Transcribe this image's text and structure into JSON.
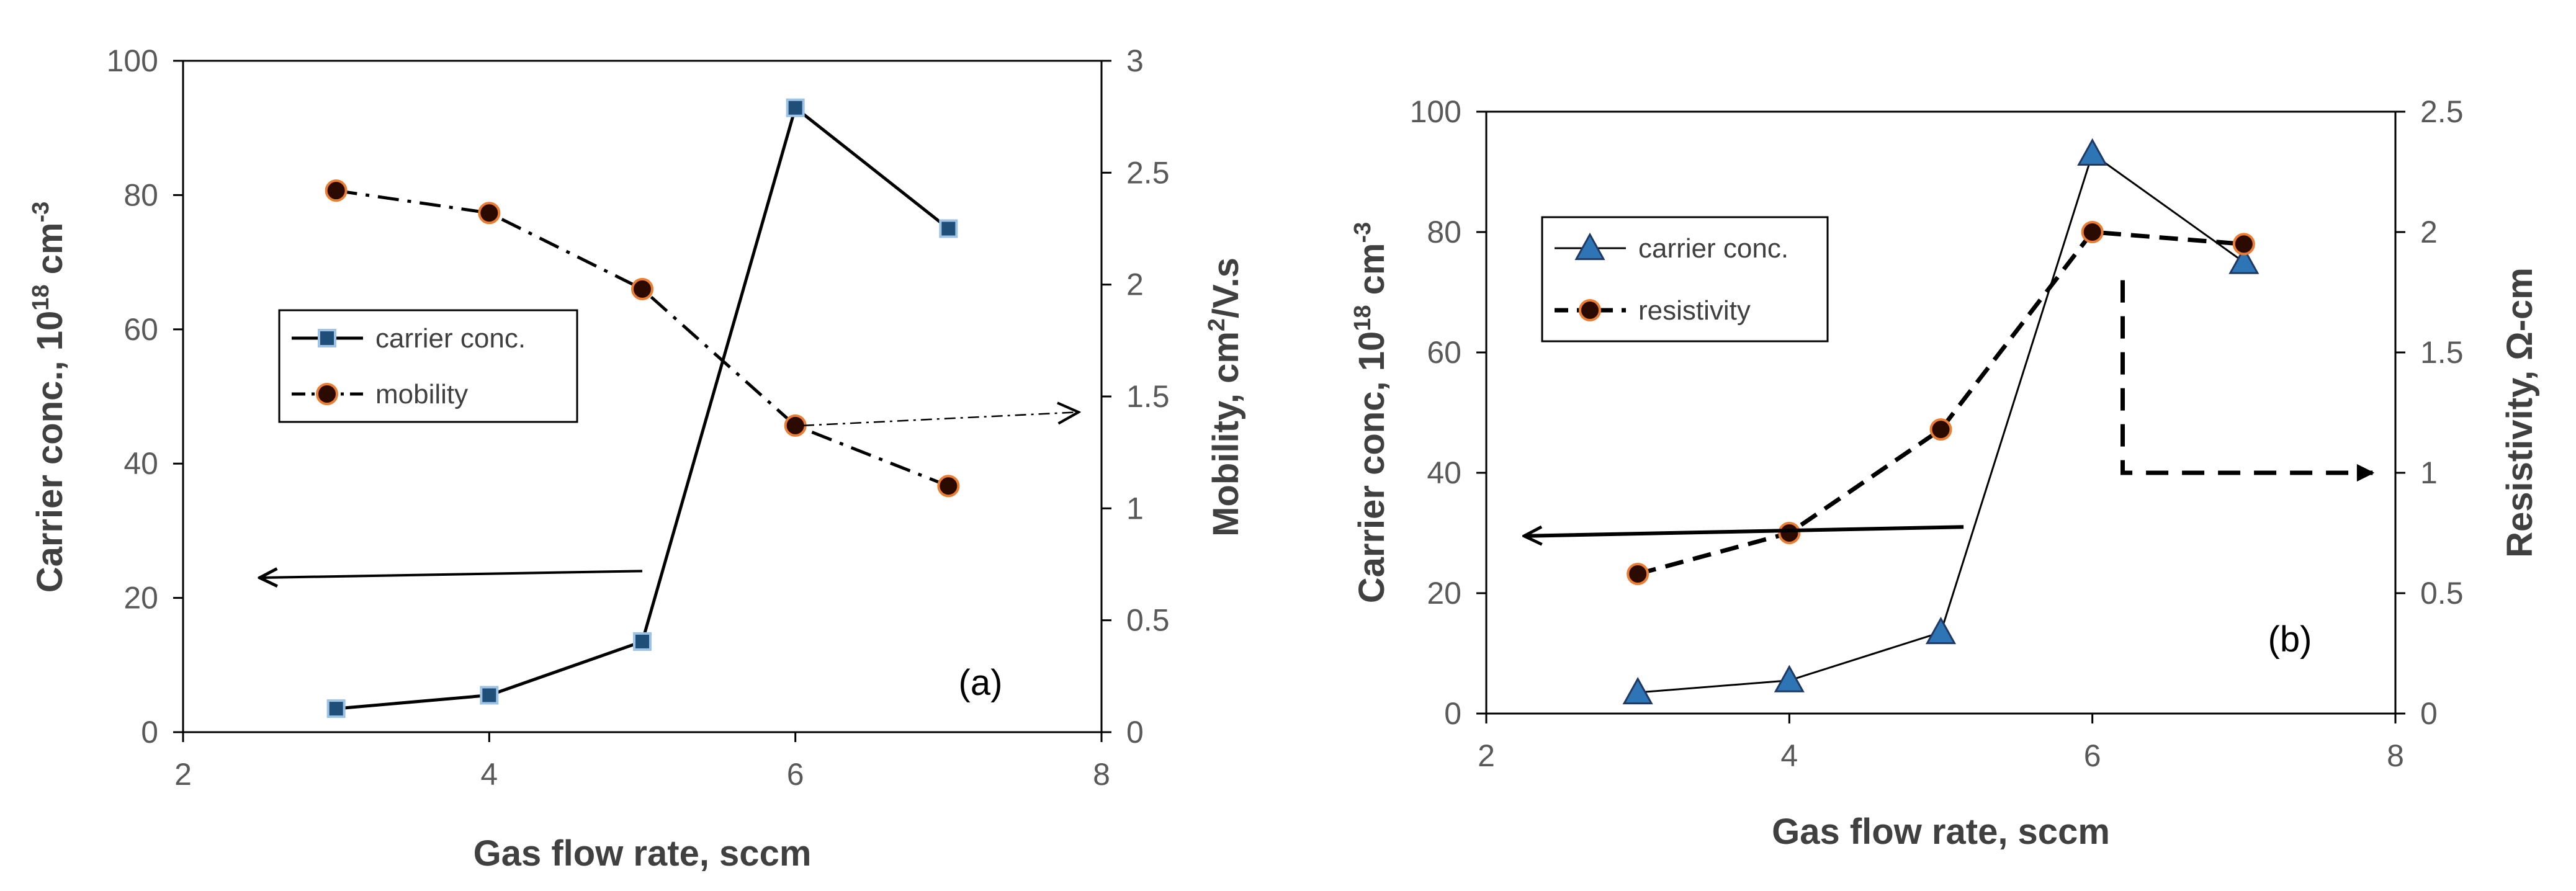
{
  "chart_data": [
    {
      "type": "line",
      "panel_label": "(a)",
      "xlabel": "Gas flow rate, sccm",
      "xlim": [
        2,
        8
      ],
      "xticks": [
        "2",
        "4",
        "6",
        "8"
      ],
      "ylabel_left": {
        "main": "Carrier conc., 10",
        "sup": "18",
        "unit": " cm",
        "unit_sup": "-3"
      },
      "ylim_left": [
        0,
        100
      ],
      "yticks_left": [
        "0",
        "20",
        "40",
        "60",
        "80",
        "100"
      ],
      "ylabel_right": {
        "main": "Mobility, cm",
        "sup": "2",
        "unit": "/V.s"
      },
      "ylim_right": [
        0,
        3
      ],
      "yticks_right": [
        "0",
        "0.5",
        "1",
        "1.5",
        "2",
        "2.5",
        "3"
      ],
      "series": [
        {
          "name": "carrier conc.",
          "axis": "left",
          "marker": "square",
          "line": "solid",
          "x": [
            3,
            4,
            5,
            6,
            7
          ],
          "values": [
            3.5,
            5.5,
            13.5,
            93,
            75
          ]
        },
        {
          "name": "mobility",
          "axis": "right",
          "marker": "circle",
          "line": "dashdot",
          "x": [
            3,
            4,
            5,
            6,
            7
          ],
          "values": [
            2.42,
            2.32,
            1.98,
            1.37,
            1.1
          ]
        }
      ],
      "annotations": [
        {
          "kind": "arrow",
          "points_to": "left-axis",
          "from": [
            5,
            24
          ],
          "to": [
            2.5,
            23
          ]
        },
        {
          "kind": "arrow",
          "points_to": "right-axis",
          "from": [
            6.05,
            1.37
          ],
          "to": [
            7.85,
            1.43
          ]
        }
      ],
      "legend": {
        "location": "center-left",
        "entries": [
          "carrier conc.",
          "mobility"
        ]
      }
    },
    {
      "type": "line",
      "panel_label": "(b)",
      "xlabel": "Gas flow rate, sccm",
      "xlim": [
        2,
        8
      ],
      "xticks": [
        "2",
        "4",
        "6",
        "8"
      ],
      "ylabel_left": {
        "main": "Carrier conc, 10",
        "sup": "18",
        "unit": " cm",
        "unit_sup": "-3"
      },
      "ylim_left": [
        0,
        100
      ],
      "yticks_left": [
        "0",
        "20",
        "40",
        "60",
        "80",
        "100"
      ],
      "ylabel_right": {
        "main": "Resistivity, Ω-cm"
      },
      "ylim_right": [
        0,
        2.5
      ],
      "yticks_right": [
        "0",
        "0.5",
        "1",
        "1.5",
        "2",
        "2.5"
      ],
      "series": [
        {
          "name": "carrier conc.",
          "axis": "left",
          "marker": "triangle",
          "line": "solid",
          "x": [
            3,
            4,
            5,
            6,
            7
          ],
          "values": [
            3.5,
            5.5,
            13.5,
            93,
            75
          ]
        },
        {
          "name": "resistivity",
          "axis": "right",
          "marker": "circle",
          "line": "dashed",
          "x": [
            3,
            4,
            5,
            6,
            7
          ],
          "values": [
            0.58,
            0.75,
            1.18,
            2.0,
            1.95
          ]
        }
      ],
      "annotations": [
        {
          "kind": "arrow",
          "points_to": "left-axis",
          "from": [
            5.15,
            31
          ],
          "to": [
            2.25,
            29.5
          ]
        },
        {
          "kind": "elbow-arrow",
          "points_to": "right-axis",
          "path": [
            [
              6.2,
              1.8
            ],
            [
              6.2,
              1.0
            ],
            [
              7.85,
              1.0
            ]
          ]
        }
      ],
      "legend": {
        "location": "top-left",
        "entries": [
          "carrier conc.",
          "resistivity"
        ]
      }
    }
  ],
  "colors": {
    "axis": "#000000",
    "tick_text": "#595959",
    "title_text": "#404040",
    "square_marker_fill": "#1f4e79",
    "square_marker_edge": "#9dc3e6",
    "circle_marker_fill": "#2b0a00",
    "circle_marker_edge": "#ed7d31",
    "triangle_marker_fill": "#2e75b6",
    "triangle_marker_edge": "#1f3864"
  }
}
